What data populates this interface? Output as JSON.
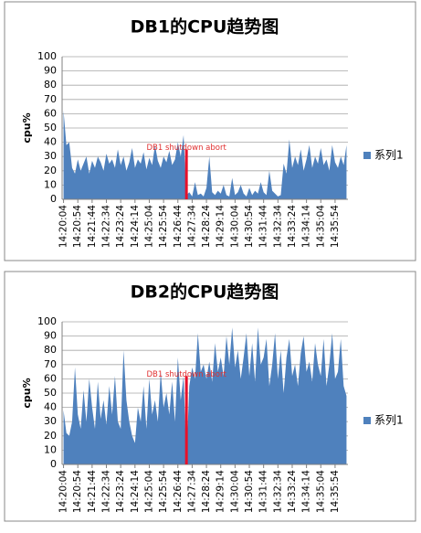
{
  "chart_data": [
    {
      "type": "area",
      "title": "DB1的CPU趋势图",
      "y_label": "cpu%",
      "categories": [
        "14:20:04",
        null,
        null,
        null,
        null,
        "14:20:54",
        null,
        null,
        null,
        null,
        "14:21:44",
        null,
        null,
        null,
        null,
        "14:22:34",
        null,
        null,
        null,
        null,
        "14:23:24",
        null,
        null,
        null,
        null,
        "14:24:14",
        null,
        null,
        null,
        null,
        "14:25:04",
        null,
        null,
        null,
        null,
        "14:25:54",
        null,
        null,
        null,
        null,
        "14:26:44",
        null,
        null,
        null,
        null,
        "14:27:34",
        null,
        null,
        null,
        null,
        "14:28:24",
        null,
        null,
        null,
        null,
        "14:29:14",
        null,
        null,
        null,
        null,
        "14:30:04",
        null,
        null,
        null,
        null,
        "14:30:54",
        null,
        null,
        null,
        null,
        "14:31:44",
        null,
        null,
        null,
        null,
        "14:32:34",
        null,
        null,
        null,
        null,
        "14:33:24",
        null,
        null,
        null,
        null,
        "14:34:14",
        null,
        null,
        null,
        null,
        "14:35:04",
        null,
        null,
        null,
        null,
        "14:35:54",
        null,
        null,
        null,
        null
      ],
      "series": [
        {
          "name": "系列1",
          "color": "#4f81bd",
          "values": [
            62,
            38,
            40,
            22,
            18,
            28,
            20,
            25,
            30,
            18,
            27,
            22,
            30,
            26,
            20,
            32,
            25,
            28,
            22,
            35,
            24,
            30,
            20,
            26,
            36,
            22,
            28,
            25,
            33,
            21,
            29,
            24,
            38,
            27,
            22,
            30,
            26,
            34,
            24,
            28,
            40,
            30,
            45,
            3,
            5,
            2,
            12,
            3,
            4,
            2,
            8,
            30,
            5,
            3,
            6,
            4,
            10,
            3,
            2,
            15,
            3,
            5,
            10,
            4,
            2,
            8,
            3,
            6,
            4,
            12,
            5,
            3,
            20,
            6,
            4,
            2,
            3,
            25,
            18,
            42,
            22,
            30,
            24,
            35,
            20,
            28,
            38,
            22,
            30,
            25,
            36,
            24,
            28,
            20,
            38,
            26,
            22,
            30,
            24,
            38
          ]
        }
      ],
      "annotation": {
        "text": "DB1 shutdown abort",
        "index": 43,
        "value": 35,
        "color": "#e8102a"
      },
      "ylim": [
        0,
        100
      ],
      "yticks": [
        0,
        10,
        20,
        30,
        40,
        50,
        60,
        70,
        80,
        90,
        100
      ],
      "grid": true,
      "legend": "right"
    },
    {
      "type": "area",
      "title": "DB2的CPU趋势图",
      "y_label": "cpu%",
      "categories": [
        "14:20:04",
        null,
        null,
        null,
        null,
        "14:20:54",
        null,
        null,
        null,
        null,
        "14:21:44",
        null,
        null,
        null,
        null,
        "14:22:34",
        null,
        null,
        null,
        null,
        "14:23:24",
        null,
        null,
        null,
        null,
        "14:24:14",
        null,
        null,
        null,
        null,
        "14:25:04",
        null,
        null,
        null,
        null,
        "14:25:54",
        null,
        null,
        null,
        null,
        "14:26:44",
        null,
        null,
        null,
        null,
        "14:27:34",
        null,
        null,
        null,
        null,
        "14:28:24",
        null,
        null,
        null,
        null,
        "14:29:14",
        null,
        null,
        null,
        null,
        "14:30:04",
        null,
        null,
        null,
        null,
        "14:30:54",
        null,
        null,
        null,
        null,
        "14:31:44",
        null,
        null,
        null,
        null,
        "14:32:34",
        null,
        null,
        null,
        null,
        "14:33:24",
        null,
        null,
        null,
        null,
        "14:34:14",
        null,
        null,
        null,
        null,
        "14:35:04",
        null,
        null,
        null,
        null,
        "14:35:54",
        null,
        null,
        null,
        null
      ],
      "series": [
        {
          "name": "系列1",
          "color": "#4f81bd",
          "values": [
            38,
            22,
            20,
            30,
            68,
            35,
            25,
            52,
            30,
            60,
            40,
            25,
            58,
            32,
            45,
            28,
            55,
            35,
            62,
            30,
            25,
            80,
            45,
            30,
            20,
            15,
            40,
            30,
            55,
            25,
            60,
            35,
            45,
            30,
            65,
            40,
            50,
            35,
            58,
            30,
            75,
            45,
            62,
            3,
            55,
            68,
            60,
            92,
            65,
            70,
            60,
            72,
            58,
            85,
            65,
            75,
            62,
            90,
            70,
            96,
            68,
            80,
            60,
            75,
            92,
            62,
            85,
            58,
            96,
            70,
            75,
            88,
            55,
            70,
            92,
            60,
            80,
            50,
            75,
            88,
            62,
            70,
            55,
            78,
            90,
            65,
            72,
            58,
            85,
            70,
            62,
            88,
            55,
            70,
            92,
            60,
            65,
            88,
            55,
            48
          ]
        }
      ],
      "annotation": {
        "text": "DB1 shutdown abort",
        "index": 43,
        "value": 62,
        "color": "#e8102a"
      },
      "ylim": [
        0,
        100
      ],
      "yticks": [
        0,
        10,
        20,
        30,
        40,
        50,
        60,
        70,
        80,
        90,
        100
      ],
      "grid": true,
      "legend": "right"
    }
  ]
}
